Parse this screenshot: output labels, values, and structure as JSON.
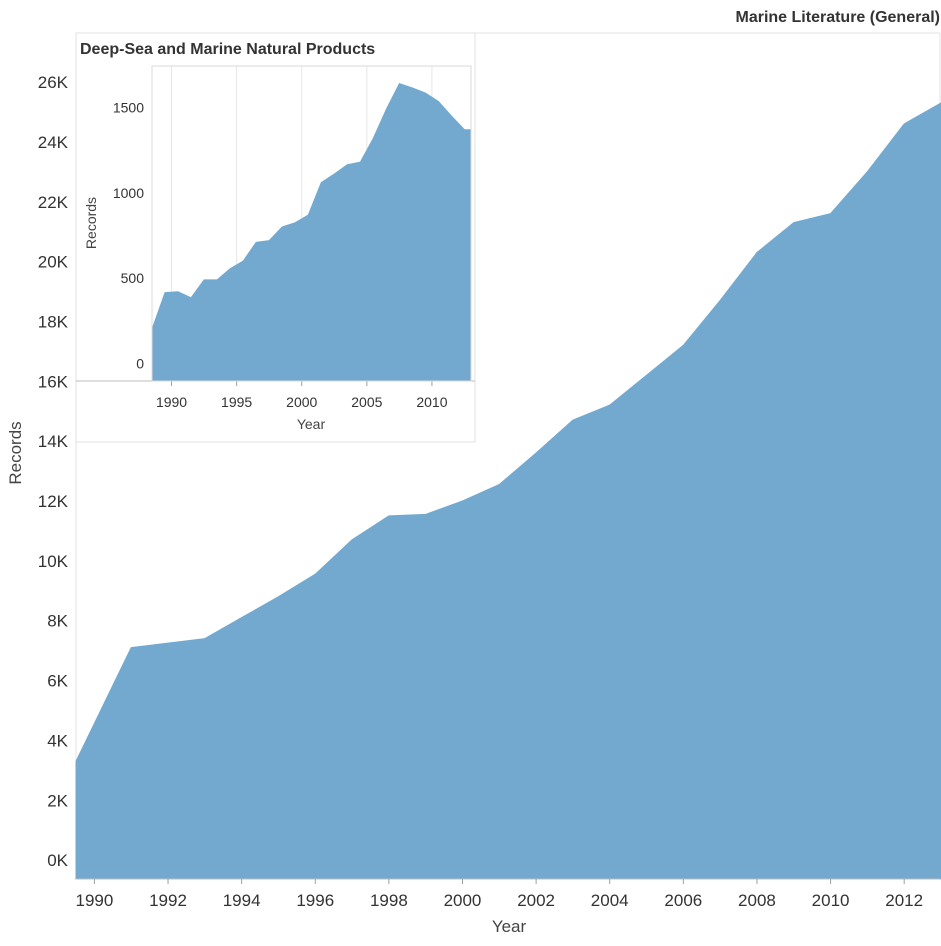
{
  "chart_data": [
    {
      "id": "main",
      "type": "area",
      "title": "Marine Literature (General)",
      "xlabel": "Year",
      "ylabel": "Records",
      "xlim": [
        1989.5,
        2013
      ],
      "ylim": [
        -300,
        26700
      ],
      "x_ticks": [
        1990,
        1992,
        1994,
        1996,
        1998,
        2000,
        2002,
        2004,
        2006,
        2008,
        2010,
        2012
      ],
      "x_tick_labels": [
        "1990",
        "1992",
        "1994",
        "1996",
        "1998",
        "2000",
        "2002",
        "2004",
        "2006",
        "2008",
        "2010",
        "2012"
      ],
      "y_ticks": [
        0,
        2000,
        4000,
        6000,
        8000,
        10000,
        12000,
        14000,
        16000,
        18000,
        20000,
        22000,
        24000,
        26000
      ],
      "y_tick_labels": [
        "0K",
        "2K",
        "4K",
        "6K",
        "8K",
        "10K",
        "12K",
        "14K",
        "16K",
        "18K",
        "20K",
        "22K",
        "24K",
        "26K"
      ],
      "x": [
        1989.5,
        1991,
        1993,
        1994,
        1995,
        1996,
        1997,
        1998,
        1999,
        2000,
        2001,
        2002,
        2003,
        2004,
        2005,
        2006,
        2007,
        2008,
        2009,
        2010,
        2011,
        2012,
        2013
      ],
      "values": [
        3300,
        7100,
        7400,
        8100,
        8800,
        9550,
        10700,
        11500,
        11550,
        12000,
        12550,
        13600,
        14700,
        15200,
        16200,
        17200,
        18700,
        20300,
        21300,
        21600,
        23000,
        24600,
        25300
      ],
      "color": "#74a9cf"
    },
    {
      "id": "inset",
      "type": "area",
      "title": "Deep-Sea and Marine Natural Products",
      "xlabel": "Year",
      "ylabel": "Records",
      "xlim": [
        1988.5,
        2013
      ],
      "ylim": [
        -50,
        1720
      ],
      "x_ticks": [
        1990,
        1995,
        2000,
        2005,
        2010
      ],
      "x_tick_labels": [
        "1990",
        "1995",
        "2000",
        "2005",
        "2010"
      ],
      "y_ticks": [
        0,
        500,
        1000,
        1500
      ],
      "y_tick_labels": [
        "0",
        "500",
        "1000",
        "1500"
      ],
      "x": [
        1988.5,
        1989.5,
        1990.5,
        1991.5,
        1992.5,
        1993.5,
        1994.5,
        1995.5,
        1996.5,
        1997.5,
        1998.5,
        1999.5,
        2000.5,
        2001.5,
        2002.5,
        2003.5,
        2004.5,
        2005.5,
        2006.5,
        2007.5,
        2008.5,
        2009.5,
        2010.5,
        2011.5,
        2012.5,
        2013
      ],
      "values": [
        200,
        415,
        420,
        385,
        490,
        490,
        555,
        600,
        710,
        720,
        800,
        825,
        870,
        1060,
        1110,
        1165,
        1180,
        1320,
        1490,
        1640,
        1615,
        1585,
        1535,
        1450,
        1370,
        1370
      ],
      "color": "#74a9cf"
    }
  ]
}
